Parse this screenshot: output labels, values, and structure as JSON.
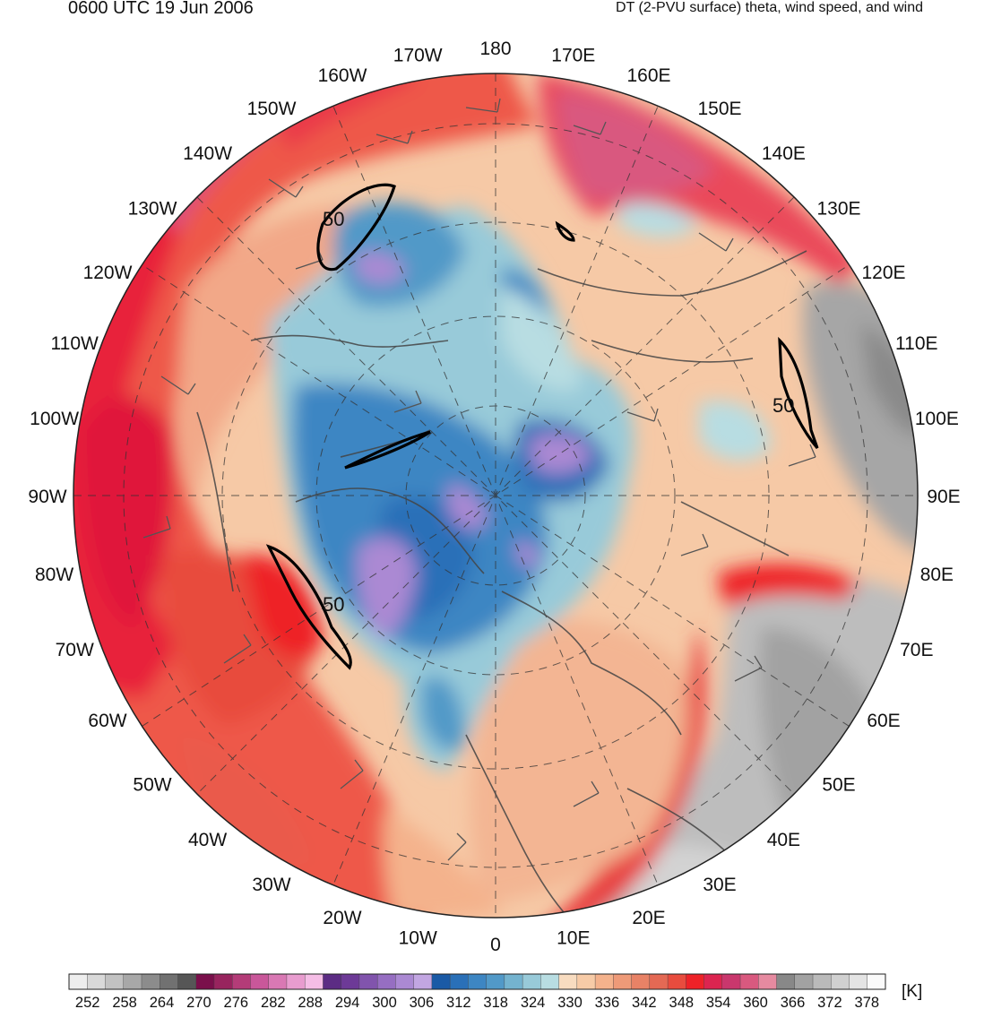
{
  "header": {
    "valid_time": "0600 UTC 19 Jun 2006",
    "field_title": "DT (2-PVU surface) theta, wind speed, and wind"
  },
  "longitude_labels": [
    "180",
    "170E",
    "160E",
    "150E",
    "140E",
    "130E",
    "120E",
    "110E",
    "100E",
    "90E",
    "80E",
    "70E",
    "60E",
    "50E",
    "40E",
    "30E",
    "20E",
    "10E",
    "0",
    "10W",
    "20W",
    "30W",
    "40W",
    "50W",
    "60W",
    "70W",
    "80W",
    "90W",
    "100W",
    "110W",
    "120W",
    "130W",
    "140W",
    "150W",
    "160W",
    "170W"
  ],
  "wind_speed_contour_label": "50",
  "colorbar": {
    "unit": "[K]",
    "tick_labels": [
      "252",
      "258",
      "264",
      "270",
      "276",
      "282",
      "288",
      "294",
      "300",
      "306",
      "312",
      "318",
      "324",
      "330",
      "336",
      "342",
      "348",
      "354",
      "360",
      "366",
      "372",
      "378"
    ],
    "colors": [
      "#eeeeee",
      "#d9d9d9",
      "#c2c2c2",
      "#a8a8a8",
      "#8c8c8c",
      "#717171",
      "#565656",
      "#7a0f4b",
      "#98245e",
      "#b43c78",
      "#c9579a",
      "#d978b4",
      "#e89ccf",
      "#f5bde6",
      "#5c2c84",
      "#6d3a97",
      "#8154ad",
      "#966ec2",
      "#ab89d3",
      "#c2a6e2",
      "#1a5aa6",
      "#2a70b8",
      "#3d86c3",
      "#5199c8",
      "#74b3cf",
      "#98cad9",
      "#b8dde2",
      "#f8dcc0",
      "#f7cba7",
      "#f4b28c",
      "#ee9a78",
      "#e88266",
      "#e46954",
      "#e84c3e",
      "#ee2228",
      "#dc2450",
      "#c9376d",
      "#d9597f",
      "#e68aa0",
      "#888888",
      "#a2a2a2",
      "#bababa",
      "#d0d0d0",
      "#e4e4e4",
      "#fafafa"
    ]
  }
}
